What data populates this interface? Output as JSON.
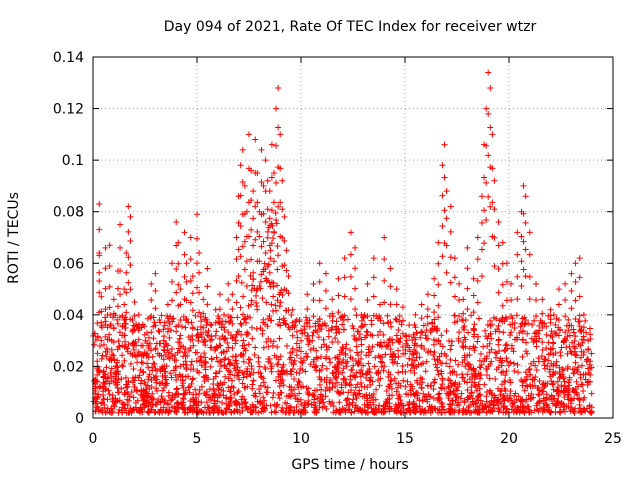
{
  "chart_data": {
    "type": "scatter",
    "title": "Day 094 of 2021, Rate Of TEC Index for receiver wtzr",
    "xlabel": "GPS time / hours",
    "ylabel": "ROTI / TECUs",
    "xlim": [
      0,
      25
    ],
    "ylim": [
      0,
      0.14
    ],
    "xticks": [
      0,
      5,
      10,
      15,
      20,
      25
    ],
    "xtick_labels": [
      "0",
      "5",
      "10",
      "15",
      "20",
      "25"
    ],
    "yticks": [
      0,
      0.02,
      0.04,
      0.06,
      0.08,
      0.1,
      0.12,
      0.14
    ],
    "ytick_labels": [
      "0",
      "0.02",
      "0.04",
      "0.06",
      "0.08",
      "0.1",
      "0.12",
      "0.14"
    ],
    "grid": true,
    "marker": "+",
    "color": "#ff0000",
    "series": [
      {
        "name": "ROTI",
        "points": [
          [
            0.1,
            0.015
          ],
          [
            0.2,
            0.022
          ],
          [
            0.3,
            0.064
          ],
          [
            0.3,
            0.083
          ],
          [
            0.4,
            0.047
          ],
          [
            0.5,
            0.018
          ],
          [
            0.6,
            0.066
          ],
          [
            0.7,
            0.04
          ],
          [
            0.8,
            0.067
          ],
          [
            0.9,
            0.03
          ],
          [
            1.0,
            0.046
          ],
          [
            1.1,
            0.02
          ],
          [
            1.2,
            0.057
          ],
          [
            1.3,
            0.075
          ],
          [
            1.4,
            0.032
          ],
          [
            1.5,
            0.05
          ],
          [
            1.6,
            0.064
          ],
          [
            1.7,
            0.082
          ],
          [
            1.8,
            0.078
          ],
          [
            1.9,
            0.038
          ],
          [
            2.0,
            0.045
          ],
          [
            2.2,
            0.04
          ],
          [
            2.4,
            0.028
          ],
          [
            2.6,
            0.033
          ],
          [
            2.8,
            0.052
          ],
          [
            3.0,
            0.056
          ],
          [
            3.2,
            0.038
          ],
          [
            3.4,
            0.03
          ],
          [
            3.6,
            0.044
          ],
          [
            3.8,
            0.06
          ],
          [
            4.0,
            0.076
          ],
          [
            4.1,
            0.068
          ],
          [
            4.2,
            0.05
          ],
          [
            4.4,
            0.072
          ],
          [
            4.5,
            0.06
          ],
          [
            4.7,
            0.07
          ],
          [
            4.8,
            0.055
          ],
          [
            5.0,
            0.079
          ],
          [
            5.1,
            0.064
          ],
          [
            5.3,
            0.046
          ],
          [
            5.5,
            0.058
          ],
          [
            5.7,
            0.036
          ],
          [
            5.9,
            0.042
          ],
          [
            6.1,
            0.048
          ],
          [
            6.3,
            0.04
          ],
          [
            6.5,
            0.052
          ],
          [
            6.7,
            0.048
          ],
          [
            6.9,
            0.07
          ],
          [
            7.0,
            0.086
          ],
          [
            7.1,
            0.098
          ],
          [
            7.2,
            0.104
          ],
          [
            7.3,
            0.09
          ],
          [
            7.4,
            0.08
          ],
          [
            7.5,
            0.11
          ],
          [
            7.6,
            0.096
          ],
          [
            7.7,
            0.088
          ],
          [
            7.8,
            0.108
          ],
          [
            7.9,
            0.095
          ],
          [
            8.0,
            0.08
          ],
          [
            8.1,
            0.104
          ],
          [
            8.2,
            0.09
          ],
          [
            8.3,
            0.1
          ],
          [
            8.4,
            0.092
          ],
          [
            8.5,
            0.088
          ],
          [
            8.6,
            0.106
          ],
          [
            8.7,
            0.095
          ],
          [
            8.8,
            0.12
          ],
          [
            8.9,
            0.128
          ],
          [
            9.0,
            0.11
          ],
          [
            9.1,
            0.092
          ],
          [
            9.2,
            0.078
          ],
          [
            9.3,
            0.065
          ],
          [
            9.4,
            0.055
          ],
          [
            9.6,
            0.042
          ],
          [
            9.8,
            0.038
          ],
          [
            10.0,
            0.034
          ],
          [
            10.3,
            0.048
          ],
          [
            10.6,
            0.052
          ],
          [
            10.9,
            0.06
          ],
          [
            11.2,
            0.056
          ],
          [
            11.5,
            0.046
          ],
          [
            11.8,
            0.054
          ],
          [
            12.1,
            0.062
          ],
          [
            12.4,
            0.072
          ],
          [
            12.6,
            0.066
          ],
          [
            12.9,
            0.04
          ],
          [
            13.2,
            0.052
          ],
          [
            13.5,
            0.062
          ],
          [
            13.8,
            0.044
          ],
          [
            14.0,
            0.07
          ],
          [
            14.3,
            0.058
          ],
          [
            14.6,
            0.05
          ],
          [
            14.9,
            0.043
          ],
          [
            15.2,
            0.036
          ],
          [
            15.5,
            0.04
          ],
          [
            15.8,
            0.044
          ],
          [
            16.1,
            0.048
          ],
          [
            16.4,
            0.054
          ],
          [
            16.6,
            0.068
          ],
          [
            16.8,
            0.098
          ],
          [
            16.9,
            0.106
          ],
          [
            17.0,
            0.088
          ],
          [
            17.2,
            0.082
          ],
          [
            17.4,
            0.062
          ],
          [
            17.6,
            0.052
          ],
          [
            17.8,
            0.046
          ],
          [
            18.0,
            0.066
          ],
          [
            18.3,
            0.054
          ],
          [
            18.5,
            0.07
          ],
          [
            18.7,
            0.086
          ],
          [
            18.8,
            0.106
          ],
          [
            18.9,
            0.12
          ],
          [
            19.0,
            0.134
          ],
          [
            19.1,
            0.128
          ],
          [
            19.2,
            0.11
          ],
          [
            19.3,
            0.092
          ],
          [
            19.5,
            0.076
          ],
          [
            19.7,
            0.068
          ],
          [
            19.9,
            0.06
          ],
          [
            20.1,
            0.052
          ],
          [
            20.4,
            0.072
          ],
          [
            20.6,
            0.08
          ],
          [
            20.7,
            0.09
          ],
          [
            20.8,
            0.086
          ],
          [
            21.0,
            0.072
          ],
          [
            21.3,
            0.052
          ],
          [
            21.6,
            0.046
          ],
          [
            22.0,
            0.042
          ],
          [
            22.4,
            0.05
          ],
          [
            22.7,
            0.052
          ],
          [
            23.0,
            0.056
          ],
          [
            23.2,
            0.06
          ],
          [
            23.4,
            0.062
          ],
          [
            23.6,
            0.04
          ],
          [
            23.8,
            0.03
          ],
          [
            23.9,
            0.022
          ]
        ]
      }
    ],
    "background_band": {
      "description": "dense cloud of ROTI samples",
      "min": 0.002,
      "typical_max": 0.04,
      "x_range": [
        0,
        24
      ]
    }
  }
}
